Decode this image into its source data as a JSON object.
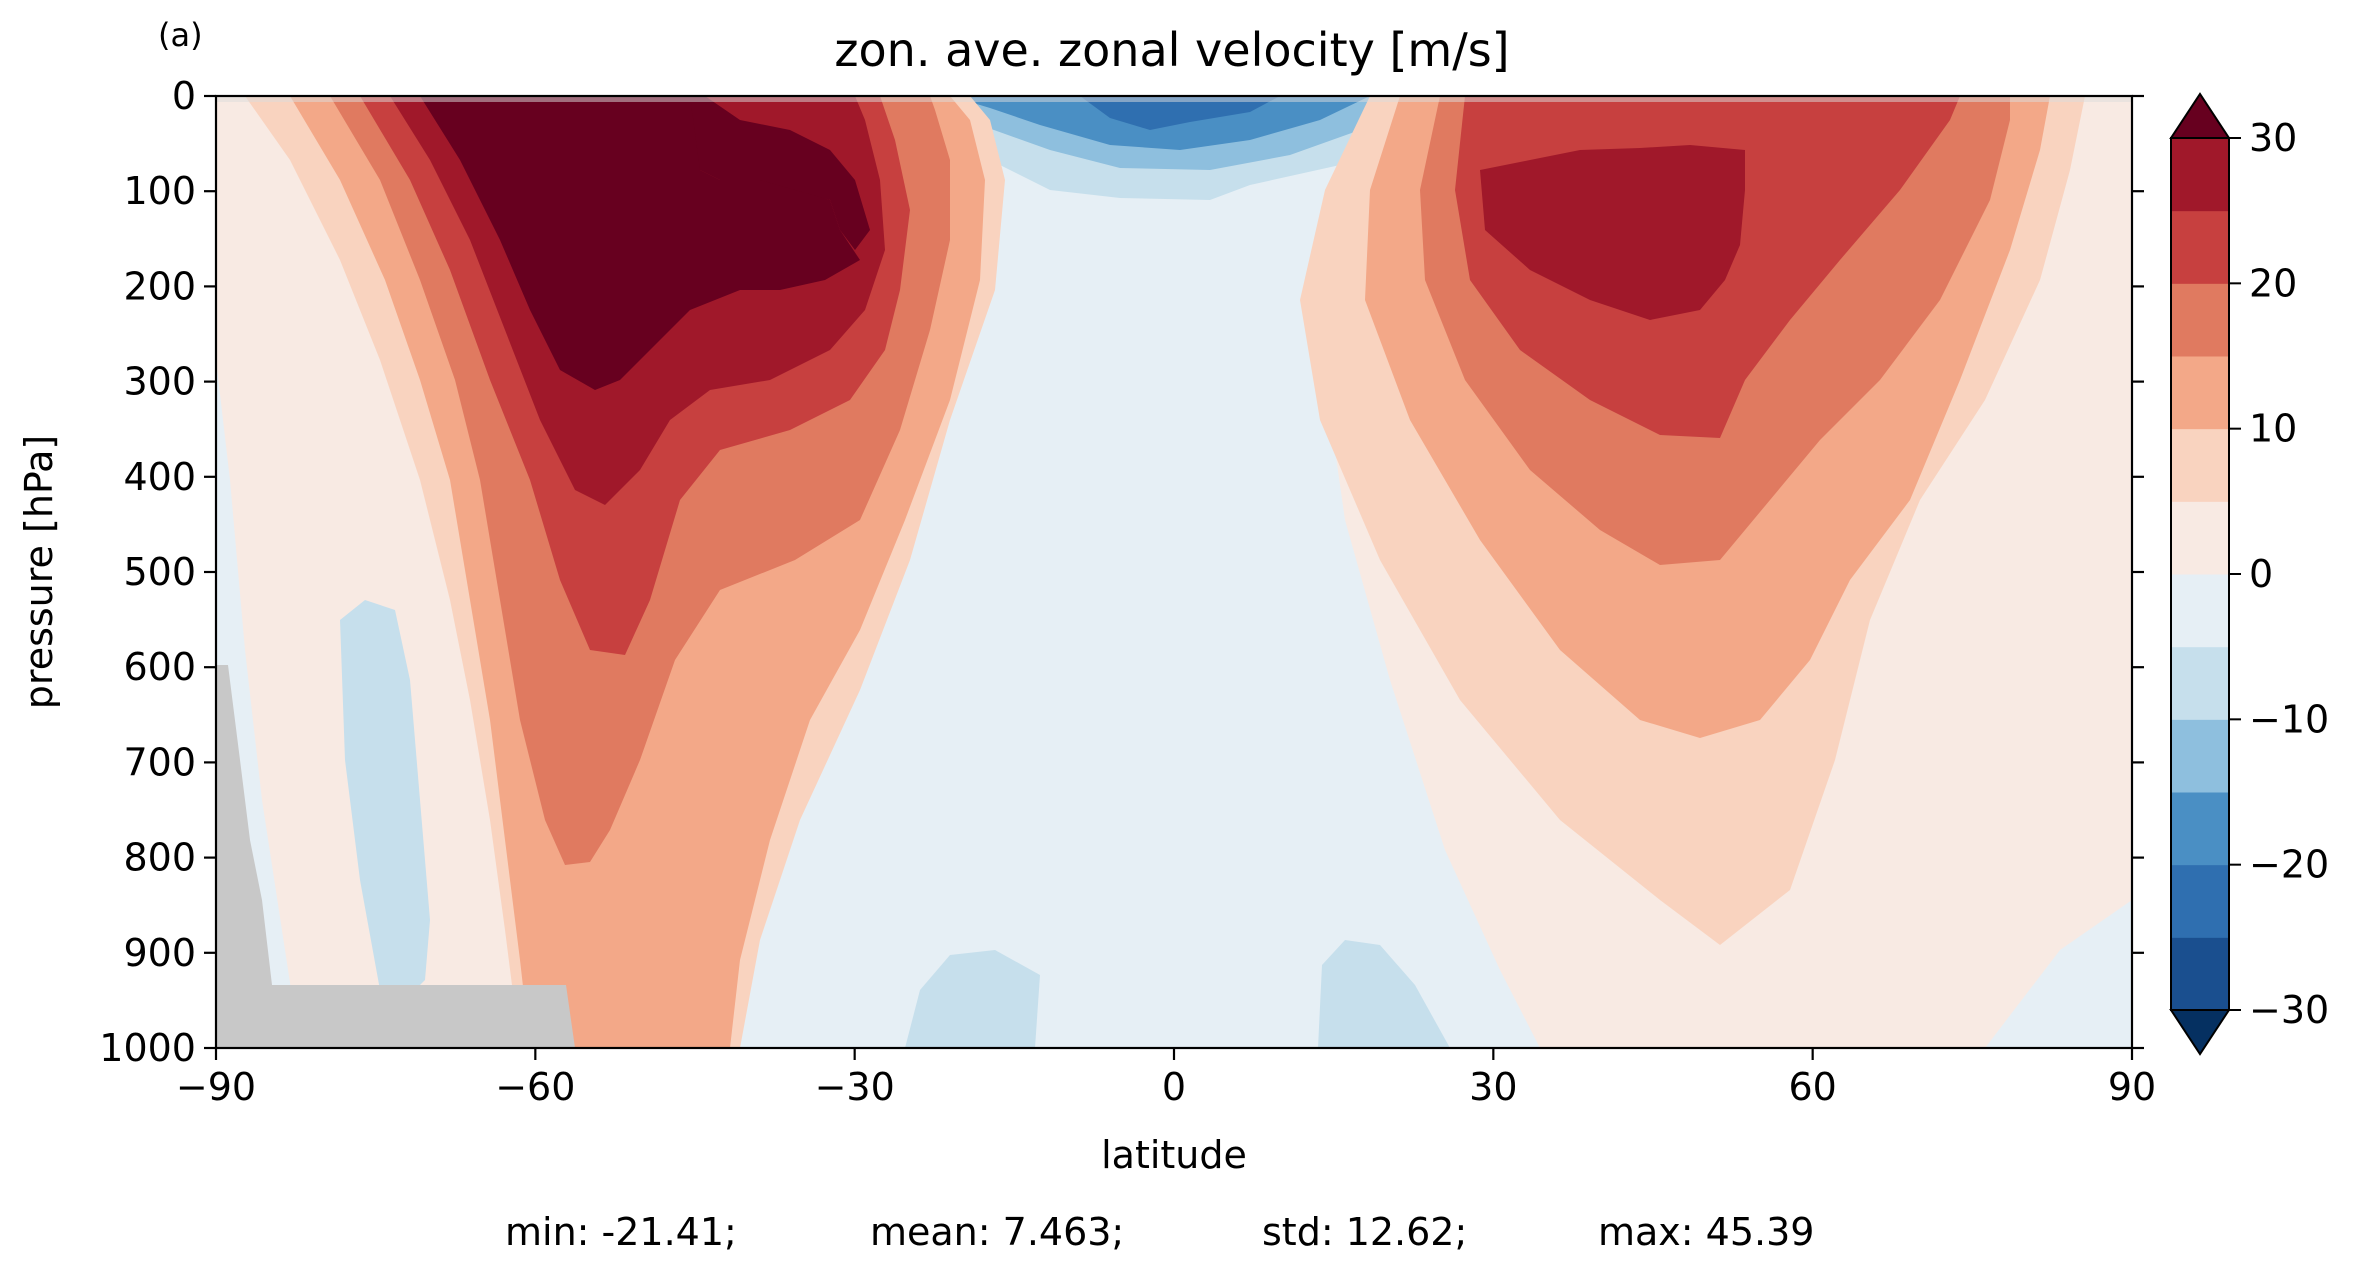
{
  "chart_data": {
    "type": "contourf",
    "panel_label": "(a)",
    "title": "zon. ave. zonal velocity [m/s]",
    "xlabel": "latitude",
    "ylabel": "pressure [hPa]",
    "xlim": [
      -90,
      90
    ],
    "ylim": [
      1000,
      0
    ],
    "x_ticks": [
      -90,
      -60,
      -30,
      0,
      30,
      60,
      90
    ],
    "x_tick_labels": [
      "−90",
      "−60",
      "−30",
      "0",
      "30",
      "60",
      "90"
    ],
    "y_ticks": [
      0,
      100,
      200,
      300,
      400,
      500,
      600,
      700,
      800,
      900,
      1000
    ],
    "y_tick_labels": [
      "0",
      "100",
      "200",
      "300",
      "400",
      "500",
      "600",
      "700",
      "800",
      "900",
      "1000"
    ],
    "colorbar": {
      "levels": [
        -30,
        -25,
        -20,
        -15,
        -10,
        -5,
        0,
        5,
        10,
        15,
        20,
        25,
        30
      ],
      "extend": "both",
      "cmap": "RdBu_r",
      "colors": [
        "#1a4f8f",
        "#2f6fb0",
        "#4a8fc4",
        "#8ebfde",
        "#c6dfec",
        "#e6eff5",
        "#f8eae3",
        "#f9d3bf",
        "#f3a888",
        "#e07a60",
        "#c7403f",
        "#a0182a"
      ],
      "under_color": "#053061",
      "over_color": "#67001f",
      "tick_values": [
        30,
        20,
        10,
        0,
        -10,
        -20,
        -30
      ],
      "tick_labels": [
        "30",
        "20",
        "10",
        "0",
        "−10",
        "−20",
        "−30"
      ]
    },
    "topography_color": "#c8c8c8",
    "features": [
      {
        "name": "southern-hemisphere-jet",
        "lat": -53,
        "pressure_hPa": 200,
        "max_ms": 45
      },
      {
        "name": "northern-hemisphere-jet",
        "lat": 48,
        "pressure_hPa": 180,
        "max_ms": 30
      },
      {
        "name": "tropical-easterlies",
        "lat": 0,
        "pressure_hPa": 25,
        "min_ms": -21
      }
    ],
    "stats": {
      "min": "min: -21.41;",
      "mean": "mean: 7.463;",
      "std": "std: 12.62;",
      "max": "max: 45.39"
    }
  }
}
